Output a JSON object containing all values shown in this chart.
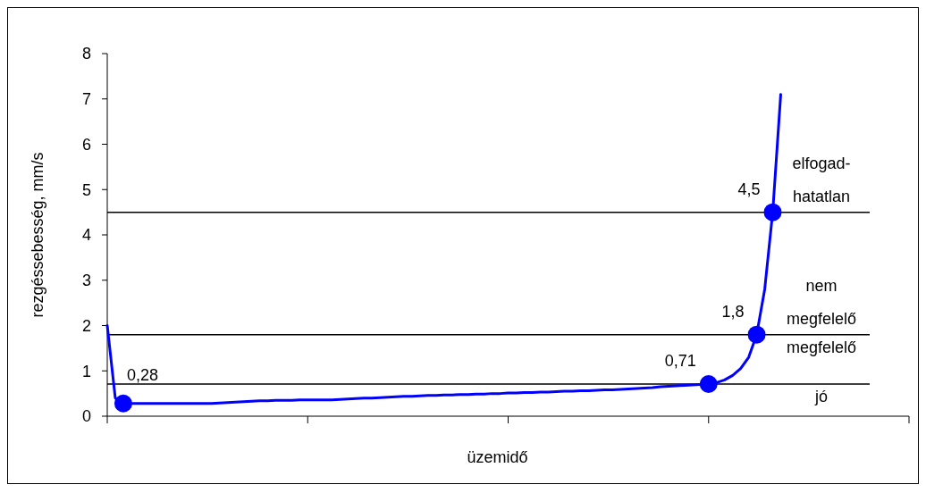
{
  "chart_data": {
    "type": "line",
    "xlabel": "üzemidő",
    "ylabel": "rezgéssebesség, mm/s",
    "categories": [
      null,
      null,
      null,
      null,
      null,
      null,
      null,
      null,
      null,
      null,
      null,
      null,
      null,
      null,
      null,
      null,
      null,
      null,
      null,
      null,
      null,
      null,
      null,
      null,
      null,
      null,
      null,
      null,
      null,
      null,
      null,
      null,
      null,
      null,
      null,
      null,
      null,
      null,
      null,
      null,
      null,
      null,
      null,
      null,
      null,
      null,
      null,
      null,
      null,
      null,
      null,
      null,
      null,
      null,
      null,
      null,
      null,
      null,
      null,
      null,
      null,
      null,
      null,
      null,
      null,
      null,
      null,
      null,
      null,
      null,
      null,
      null,
      null,
      null,
      null,
      null,
      null,
      null,
      null,
      null,
      null,
      null,
      null,
      null,
      null,
      null,
      null,
      null,
      null,
      null,
      null,
      null,
      null,
      null,
      null,
      null,
      null,
      null,
      null,
      null,
      null
    ],
    "ylim": [
      0,
      8
    ],
    "yticks": [
      0,
      1,
      2,
      3,
      4,
      5,
      6,
      7,
      8
    ],
    "tick_labels": "y",
    "series": [
      {
        "color": "#0000ff",
        "values": [
          2.0,
          0.4,
          0.28,
          0.28,
          0.28,
          0.28,
          0.28,
          0.28,
          0.28,
          0.28,
          0.28,
          0.28,
          0.28,
          0.28,
          0.29,
          0.3,
          0.31,
          0.32,
          0.33,
          0.34,
          0.34,
          0.35,
          0.35,
          0.35,
          0.36,
          0.36,
          0.36,
          0.36,
          0.36,
          0.37,
          0.38,
          0.39,
          0.4,
          0.4,
          0.41,
          0.42,
          0.43,
          0.44,
          0.44,
          0.45,
          0.46,
          0.46,
          0.47,
          0.47,
          0.48,
          0.48,
          0.49,
          0.49,
          0.5,
          0.5,
          0.51,
          0.51,
          0.52,
          0.52,
          0.53,
          0.53,
          0.54,
          0.55,
          0.55,
          0.56,
          0.56,
          0.57,
          0.58,
          0.58,
          0.59,
          0.6,
          0.61,
          0.62,
          0.63,
          0.65,
          0.66,
          0.67,
          0.68,
          0.69,
          0.7,
          0.71,
          0.74,
          0.8,
          0.9,
          1.05,
          1.3,
          1.8,
          2.8,
          4.5,
          7.1,
          null,
          null,
          null,
          null,
          null,
          null,
          null,
          null,
          null,
          null,
          null,
          null,
          null,
          null,
          null,
          null
        ],
        "value_labels": [
          null,
          null,
          "0,28",
          null,
          null,
          null,
          null,
          null,
          null,
          null,
          null,
          null,
          null,
          null,
          null,
          null,
          null,
          null,
          null,
          null,
          null,
          null,
          null,
          null,
          null,
          null,
          null,
          null,
          null,
          null,
          null,
          null,
          null,
          null,
          null,
          null,
          null,
          null,
          null,
          null,
          null,
          null,
          null,
          null,
          null,
          null,
          null,
          null,
          null,
          null,
          null,
          null,
          null,
          null,
          null,
          null,
          null,
          null,
          null,
          null,
          null,
          null,
          null,
          null,
          null,
          null,
          null,
          null,
          null,
          null,
          null,
          null,
          null,
          null,
          null,
          "0,71",
          null,
          null,
          null,
          null,
          null,
          "1,8",
          null,
          "4,5",
          null,
          null,
          null,
          null,
          null,
          null,
          null,
          null,
          null,
          null,
          null,
          null,
          null,
          null,
          null,
          null,
          null
        ]
      }
    ],
    "ref_lines": [
      {
        "axis": "y",
        "value": 0.71,
        "color": "#000000"
      },
      {
        "axis": "y",
        "value": 1.8,
        "color": "#000000"
      },
      {
        "axis": "y",
        "value": 4.5,
        "color": "#000000"
      }
    ],
    "annotations": [
      "jó",
      "megfelelő",
      "nem megfelelő",
      "elfogad-hatatlan"
    ]
  }
}
